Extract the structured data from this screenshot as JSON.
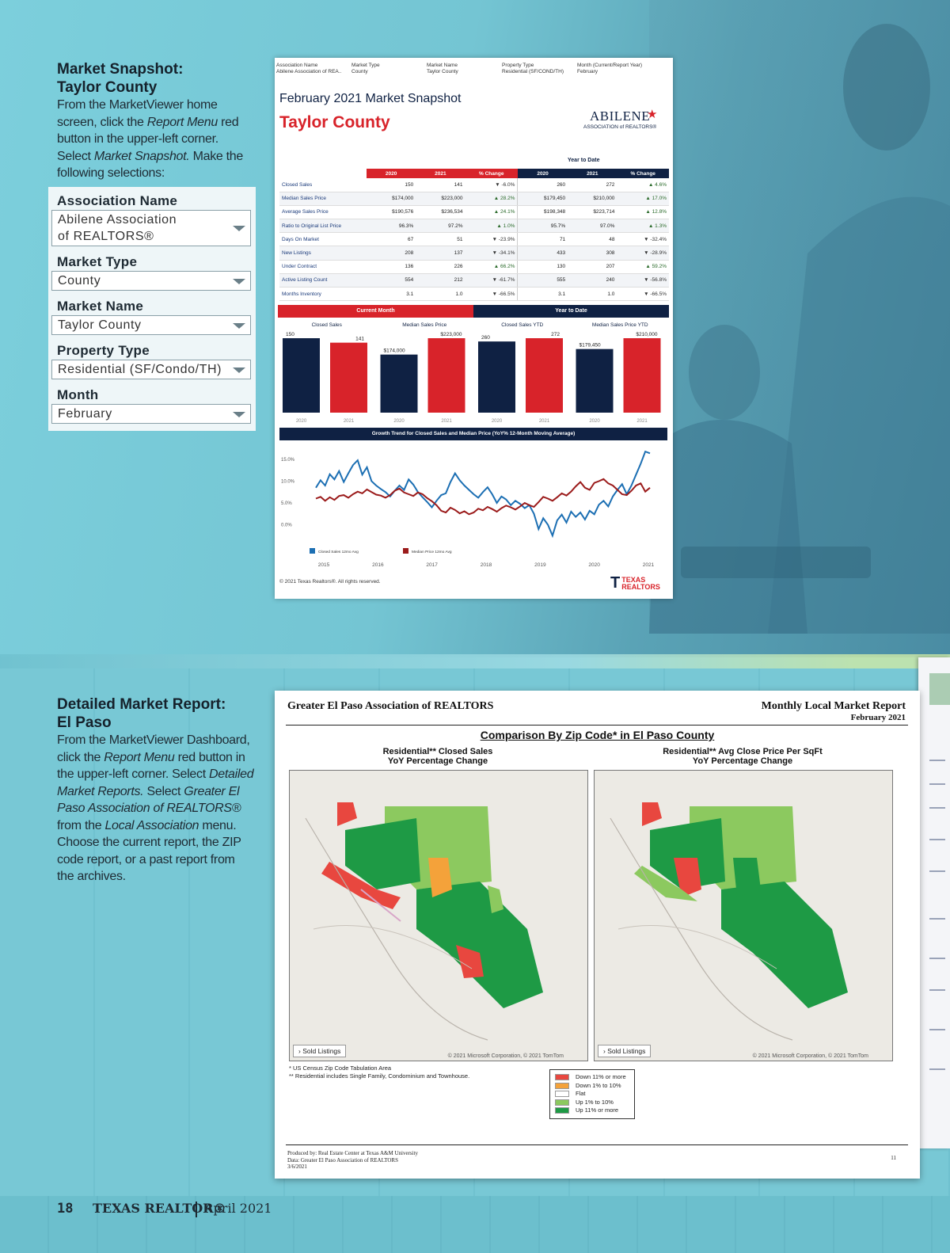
{
  "colors": {
    "navy": "#0f2143",
    "red": "#d8232a",
    "blue_line": "#1c6fb3",
    "dark_red_line": "#9b1b1b",
    "teal_bg": "#79c9d6"
  },
  "snapshot_section": {
    "heading_line1": "Market Snapshot:",
    "heading_line2": "Taylor County",
    "body_parts": [
      "From the MarketViewer home screen, click the ",
      "Report Menu",
      " red button in the upper-left corner. Select ",
      "Market Snapshot.",
      " Make the following selections:"
    ]
  },
  "form": {
    "fields": [
      {
        "label": "Association Name",
        "value_line1": "Abilene Association",
        "value_line2": "of REALTORS®"
      },
      {
        "label": "Market Type",
        "value_line1": "County"
      },
      {
        "label": "Market Name",
        "value_line1": "Taylor County"
      },
      {
        "label": "Property Type",
        "value_line1": "Residential (SF/Condo/TH)"
      },
      {
        "label": "Month",
        "value_line1": "February"
      }
    ]
  },
  "snapshot_doc": {
    "header_cols": [
      {
        "label": "Association Name",
        "value": "Abilene Association of REA.."
      },
      {
        "label": "Market Type",
        "value": "County"
      },
      {
        "label": "Market Name",
        "value": "Taylor County"
      },
      {
        "label": "Property Type",
        "value": "Residential (SF/COND/TH)"
      },
      {
        "label": "Month (Current/Report Year)",
        "value": "February"
      }
    ],
    "title": "February 2021 Market Snapshot",
    "county": "Taylor County",
    "logo_line1": "ABILENE",
    "logo_line2": "ASSOCIATION of REALTORS®",
    "ytd_label": "Year to Date",
    "col_headers": [
      "2020",
      "2021",
      "% Change",
      "2020",
      "2021",
      "% Change"
    ],
    "rows": [
      {
        "label": "Closed Sales",
        "cells": [
          "150",
          "141",
          "▼ -6.0%",
          "260",
          "272",
          "▲ 4.6%"
        ]
      },
      {
        "label": "Median Sales Price",
        "cells": [
          "$174,000",
          "$223,000",
          "▲ 28.2%",
          "$179,450",
          "$210,000",
          "▲ 17.0%"
        ]
      },
      {
        "label": "Average Sales Price",
        "cells": [
          "$190,576",
          "$236,534",
          "▲ 24.1%",
          "$198,348",
          "$223,714",
          "▲ 12.8%"
        ]
      },
      {
        "label": "Ratio to Original List Price",
        "cells": [
          "96.3%",
          "97.2%",
          "▲ 1.0%",
          "95.7%",
          "97.0%",
          "▲ 1.3%"
        ]
      },
      {
        "label": "Days On Market",
        "cells": [
          "67",
          "51",
          "▼ -23.9%",
          "71",
          "48",
          "▼ -32.4%"
        ]
      },
      {
        "label": "New Listings",
        "cells": [
          "208",
          "137",
          "▼ -34.1%",
          "433",
          "308",
          "▼ -28.9%"
        ]
      },
      {
        "label": "Under Contract",
        "cells": [
          "136",
          "226",
          "▲ 66.2%",
          "130",
          "207",
          "▲ 59.2%"
        ]
      },
      {
        "label": "Active Listing Count",
        "cells": [
          "554",
          "212",
          "▼ -61.7%",
          "555",
          "240",
          "▼ -56.8%"
        ]
      },
      {
        "label": "Months Inventory",
        "cells": [
          "3.1",
          "1.0",
          "▼ -66.5%",
          "3.1",
          "1.0",
          "▼ -66.5%"
        ]
      }
    ],
    "band_current": "Current Month",
    "band_ytd": "Year to Date",
    "trend_title": "Growth Trend for Closed Sales and Median Price (YoY% 12-Month Moving Average)",
    "copyright": "© 2021 Texas Realtors®. All rights reserved.",
    "tr_logo_line1": "TEXAS",
    "tr_logo_line2": "REALTORS"
  },
  "chart_data": [
    {
      "type": "bar",
      "panels": [
        {
          "title": "Closed Sales",
          "categories": [
            "2020",
            "2021"
          ],
          "values": [
            150,
            141
          ],
          "labels": [
            "150",
            "141"
          ]
        },
        {
          "title": "Median Sales Price",
          "categories": [
            "2020",
            "2021"
          ],
          "values": [
            174000,
            223000
          ],
          "labels": [
            "$174,000",
            "$223,000"
          ]
        },
        {
          "title": "Closed Sales YTD",
          "categories": [
            "2020",
            "2021"
          ],
          "values": [
            260,
            272
          ],
          "labels": [
            "260",
            "272"
          ]
        },
        {
          "title": "Median Sales Price YTD",
          "categories": [
            "2020",
            "2021"
          ],
          "values": [
            179450,
            210000
          ],
          "labels": [
            "$179,450",
            "$210,000"
          ]
        }
      ],
      "series_colors": [
        "#0f2143",
        "#d8232a"
      ]
    },
    {
      "type": "line",
      "title": "Growth Trend for Closed Sales and Median Price (YoY% 12-Month Moving Average)",
      "x_ticks": [
        "2015",
        "2016",
        "2017",
        "2018",
        "2019",
        "2020",
        "2021"
      ],
      "y_ticks": [
        "15.0%",
        "10.0%",
        "5.0%",
        "0.0%"
      ],
      "ylim": [
        -3,
        17
      ],
      "series": [
        {
          "name": "Closed Sales 12mo Avg",
          "color": "#1c6fb3",
          "values": [
            8.5,
            10.2,
            9.0,
            11.6,
            10.4,
            12.3,
            9.8,
            11.8,
            13.7,
            14.8,
            11.5,
            13.2,
            10.0,
            9.0,
            8.2,
            7.5,
            6.5,
            7.8,
            9.0,
            8.0,
            10.4,
            9.2,
            7.5,
            6.3,
            5.2,
            4.0,
            5.5,
            6.8,
            7.2,
            9.8,
            11.8,
            10.2,
            9.0,
            8.0,
            7.0,
            6.2,
            7.5,
            8.6,
            7.0,
            5.0,
            6.5,
            5.8,
            4.5,
            5.5,
            4.8,
            3.8,
            4.5,
            2.5,
            -1.0,
            1.5,
            0.0,
            -2.5,
            1.0,
            2.3,
            0.5,
            3.0,
            1.8,
            2.8,
            1.2,
            3.2,
            2.4,
            4.6,
            5.5,
            4.2,
            6.5,
            8.0,
            9.3,
            7.0,
            9.0,
            11.5,
            14.0,
            16.8,
            16.4
          ]
        },
        {
          "name": "Median Price 12mo Avg",
          "color": "#9b1b1b",
          "values": [
            6.0,
            6.4,
            5.5,
            6.3,
            5.7,
            6.6,
            6.8,
            6.2,
            7.0,
            7.6,
            7.2,
            8.1,
            7.5,
            6.9,
            6.7,
            6.2,
            6.8,
            7.8,
            8.3,
            7.4,
            7.0,
            6.6,
            7.4,
            7.0,
            6.1,
            5.4,
            4.5,
            3.2,
            2.8,
            3.9,
            3.4,
            2.6,
            3.1,
            2.4,
            2.8,
            3.7,
            3.3,
            4.1,
            3.6,
            3.0,
            3.8,
            4.4,
            4.0,
            3.5,
            4.2,
            5.0,
            4.5,
            4.1,
            5.2,
            6.4,
            6.0,
            5.5,
            6.3,
            7.2,
            6.7,
            7.6,
            8.8,
            9.8,
            8.5,
            8.0,
            9.6,
            10.0,
            10.5,
            9.5,
            9.0,
            8.0,
            7.0,
            6.8,
            7.8,
            9.0,
            9.5,
            7.6,
            8.5
          ]
        }
      ]
    }
  ],
  "detailed_section": {
    "heading_line1": "Detailed Market Report:",
    "heading_line2": "El Paso",
    "body_parts": [
      "From the MarketViewer Dashboard, click the ",
      "Report Menu",
      " red button in the upper-left corner. Select ",
      "Detailed Market Reports.",
      " Select ",
      "Greater El Paso Association of REALTORS®",
      " from the ",
      "Local Association",
      " menu. Choose the current report, the ZIP code report, or a past report from the archives."
    ]
  },
  "elpaso_doc": {
    "org": "Greater El Paso Association of REALTORS",
    "report_title": "Monthly Local Market Report",
    "report_month": "February 2021",
    "comparison_title": "Comparison By Zip Code* in El Paso County",
    "map1_title_line1": "Residential** Closed Sales",
    "map1_title_line2": "YoY Percentage Change",
    "map2_title_line1": "Residential** Avg Close Price Per SqFt",
    "map2_title_line2": "YoY Percentage Change",
    "sold_listings": "Sold Listings",
    "map_credit": "© 2021 Microsoft Corporation, © 2021 TomTom",
    "note1": "* US Census Zip Code Tabulation Area",
    "note2": "** Residential includes Single Family, Condominium and Townhouse.",
    "legend": [
      {
        "label": "Down 11% or more",
        "color": "#e8473f"
      },
      {
        "label": "Down 1% to 10%",
        "color": "#f4a23a"
      },
      {
        "label": "Flat",
        "color": "#ffffff"
      },
      {
        "label": "Up 1% to 10%",
        "color": "#8cc95f"
      },
      {
        "label": "Up 11% or more",
        "color": "#1e9a45"
      }
    ],
    "footer_line1": "Produced by: Real Estate Center at Texas A&M University",
    "footer_line2": "Data: Greater El Paso Association of REALTORS",
    "footer_line3": "3/6/2021",
    "page_number": "11"
  },
  "page_footer": {
    "folio": "18",
    "magazine": "TEXAS REALTOR®",
    "issue": "April 2021"
  }
}
